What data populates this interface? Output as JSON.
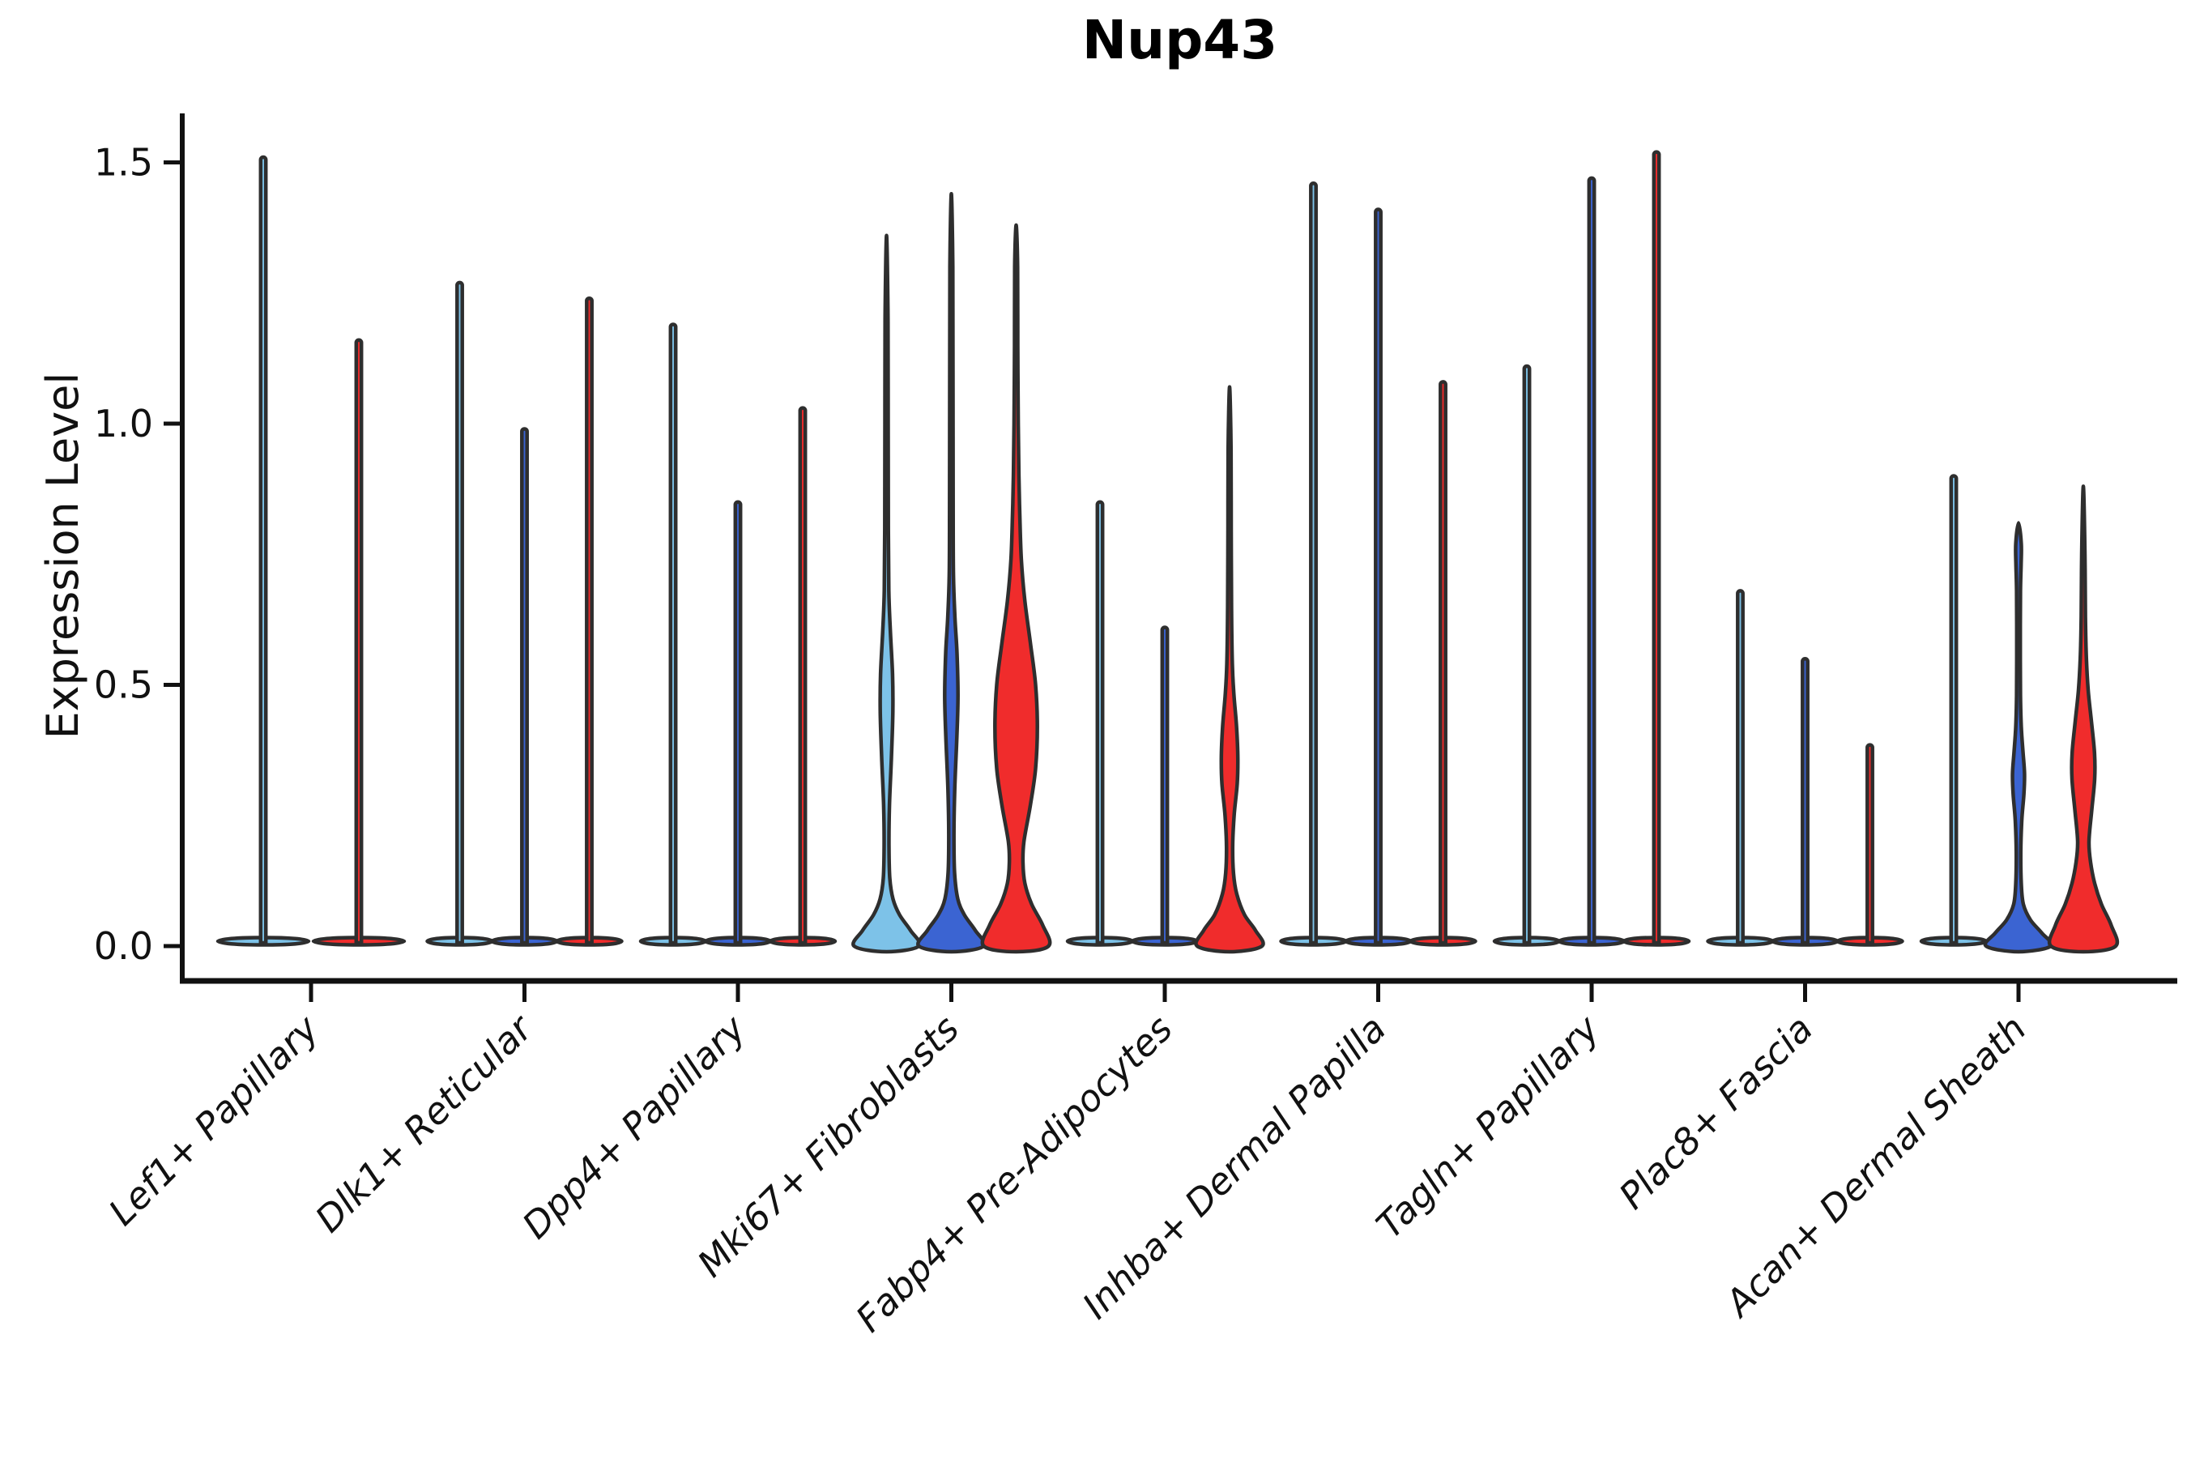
{
  "chart_data": {
    "type": "violin",
    "title": "Nup43",
    "xlabel": "",
    "ylabel": "Expression Level",
    "yticks": [
      "0.0",
      "0.5",
      "1.0",
      "1.5"
    ],
    "ytick_values": [
      0.0,
      0.5,
      1.0,
      1.5
    ],
    "ylim": [
      -0.07,
      1.59
    ],
    "grid": false,
    "legend": "none",
    "colors": {
      "skyblue": "#7DC2E8",
      "blue": "#3B64D2",
      "red": "#F02C2C",
      "outline": "#2E2E2E",
      "axis": "#111111"
    },
    "categories": [
      "Lef1+ Papillary",
      "Dlk1+ Reticular",
      "Dpp4+ Papillary",
      "Mki67+ Fibroblasts",
      "Fabp4+ Pre-Adipocytes",
      "Inhba+ Dermal Papilla",
      "Tagln+ Papillary",
      "Plac8+ Fascia",
      "Acan+ Dermal Sheath"
    ],
    "groups": [
      {
        "label": "Lef1+ Papillary",
        "violins": [
          {
            "color": "skyblue",
            "kind": "spike",
            "max": 1.51
          },
          {
            "color": "red",
            "kind": "spike",
            "max": 1.16
          }
        ]
      },
      {
        "label": "Dlk1+ Reticular",
        "violins": [
          {
            "color": "skyblue",
            "kind": "spike",
            "max": 1.27
          },
          {
            "color": "blue",
            "kind": "spike",
            "max": 0.99
          },
          {
            "color": "red",
            "kind": "spike",
            "max": 1.24
          }
        ]
      },
      {
        "label": "Dpp4+ Papillary",
        "violins": [
          {
            "color": "skyblue",
            "kind": "spike",
            "max": 1.19
          },
          {
            "color": "blue",
            "kind": "spike",
            "max": 0.85
          },
          {
            "color": "red",
            "kind": "spike",
            "max": 1.03
          }
        ]
      },
      {
        "label": "Mki67+ Fibroblasts",
        "violins": [
          {
            "color": "skyblue",
            "kind": "body",
            "max": 1.36,
            "profile": [
              [
                0,
                1.0
              ],
              [
                0.03,
                0.74
              ],
              [
                0.06,
                0.4
              ],
              [
                0.09,
                0.2
              ],
              [
                0.13,
                0.1
              ],
              [
                0.19,
                0.075
              ],
              [
                0.27,
                0.09
              ],
              [
                0.36,
                0.15
              ],
              [
                0.45,
                0.195
              ],
              [
                0.52,
                0.185
              ],
              [
                0.6,
                0.12
              ],
              [
                0.68,
                0.07
              ],
              [
                0.8,
                0.055
              ],
              [
                1.0,
                0.05
              ],
              [
                1.2,
                0.045
              ],
              [
                1.36,
                0
              ]
            ]
          },
          {
            "color": "blue",
            "kind": "body",
            "max": 1.44,
            "profile": [
              [
                0,
                1.0
              ],
              [
                0.03,
                0.74
              ],
              [
                0.06,
                0.4
              ],
              [
                0.09,
                0.2
              ],
              [
                0.14,
                0.1
              ],
              [
                0.21,
                0.08
              ],
              [
                0.3,
                0.105
              ],
              [
                0.4,
                0.17
              ],
              [
                0.48,
                0.205
              ],
              [
                0.56,
                0.175
              ],
              [
                0.63,
                0.11
              ],
              [
                0.71,
                0.065
              ],
              [
                0.85,
                0.055
              ],
              [
                1.1,
                0.05
              ],
              [
                1.3,
                0.045
              ],
              [
                1.44,
                0
              ]
            ]
          },
          {
            "color": "red",
            "kind": "body",
            "max": 1.38,
            "profile": [
              [
                0,
                1.0
              ],
              [
                0.04,
                0.82
              ],
              [
                0.08,
                0.48
              ],
              [
                0.12,
                0.27
              ],
              [
                0.16,
                0.21
              ],
              [
                0.2,
                0.24
              ],
              [
                0.27,
                0.44
              ],
              [
                0.34,
                0.6
              ],
              [
                0.42,
                0.655
              ],
              [
                0.5,
                0.6
              ],
              [
                0.58,
                0.44
              ],
              [
                0.66,
                0.27
              ],
              [
                0.74,
                0.16
              ],
              [
                0.82,
                0.115
              ],
              [
                0.9,
                0.085
              ],
              [
                1.0,
                0.065
              ],
              [
                1.15,
                0.05
              ],
              [
                1.3,
                0.045
              ],
              [
                1.38,
                0
              ]
            ]
          }
        ]
      },
      {
        "label": "Fabp4+ Pre-Adipocytes",
        "violins": [
          {
            "color": "skyblue",
            "kind": "spike",
            "max": 0.85
          },
          {
            "color": "blue",
            "kind": "spike",
            "max": 0.61
          },
          {
            "color": "red",
            "kind": "body",
            "max": 1.07,
            "profile": [
              [
                0,
                1.0
              ],
              [
                0.03,
                0.8
              ],
              [
                0.06,
                0.46
              ],
              [
                0.1,
                0.22
              ],
              [
                0.14,
                0.12
              ],
              [
                0.19,
                0.095
              ],
              [
                0.25,
                0.14
              ],
              [
                0.31,
                0.235
              ],
              [
                0.36,
                0.255
              ],
              [
                0.42,
                0.215
              ],
              [
                0.48,
                0.135
              ],
              [
                0.54,
                0.085
              ],
              [
                0.65,
                0.06
              ],
              [
                0.8,
                0.05
              ],
              [
                0.95,
                0.045
              ],
              [
                1.07,
                0
              ]
            ]
          }
        ]
      },
      {
        "label": "Inhba+ Dermal Papilla",
        "violins": [
          {
            "color": "skyblue",
            "kind": "spike",
            "max": 1.46
          },
          {
            "color": "blue",
            "kind": "spike",
            "max": 1.41
          },
          {
            "color": "red",
            "kind": "spike",
            "max": 1.08
          }
        ]
      },
      {
        "label": "Tagln+ Papillary",
        "violins": [
          {
            "color": "skyblue",
            "kind": "spike",
            "max": 1.11
          },
          {
            "color": "blue",
            "kind": "spike",
            "max": 1.47
          },
          {
            "color": "red",
            "kind": "spike",
            "max": 1.52
          }
        ]
      },
      {
        "label": "Plac8+ Fascia",
        "violins": [
          {
            "color": "skyblue",
            "kind": "spike",
            "max": 0.68
          },
          {
            "color": "blue",
            "kind": "spike",
            "max": 0.55
          },
          {
            "color": "red",
            "kind": "spike",
            "max": 0.385
          }
        ]
      },
      {
        "label": "Acan+ Dermal Sheath",
        "violins": [
          {
            "color": "skyblue",
            "kind": "spike",
            "max": 0.9
          },
          {
            "color": "blue",
            "kind": "body",
            "max": 0.81,
            "profile": [
              [
                0,
                1.0
              ],
              [
                0.025,
                0.72
              ],
              [
                0.05,
                0.37
              ],
              [
                0.08,
                0.15
              ],
              [
                0.12,
                0.085
              ],
              [
                0.18,
                0.07
              ],
              [
                0.24,
                0.1
              ],
              [
                0.29,
                0.165
              ],
              [
                0.33,
                0.185
              ],
              [
                0.37,
                0.14
              ],
              [
                0.42,
                0.085
              ],
              [
                0.48,
                0.06
              ],
              [
                0.58,
                0.055
              ],
              [
                0.68,
                0.06
              ],
              [
                0.73,
                0.08
              ],
              [
                0.77,
                0.085
              ],
              [
                0.81,
                0
              ]
            ]
          },
          {
            "color": "red",
            "kind": "body",
            "max": 0.88,
            "profile": [
              [
                0,
                1.0
              ],
              [
                0.04,
                0.86
              ],
              [
                0.08,
                0.56
              ],
              [
                0.12,
                0.35
              ],
              [
                0.16,
                0.225
              ],
              [
                0.2,
                0.175
              ],
              [
                0.26,
                0.26
              ],
              [
                0.32,
                0.35
              ],
              [
                0.37,
                0.345
              ],
              [
                0.43,
                0.25
              ],
              [
                0.49,
                0.15
              ],
              [
                0.55,
                0.095
              ],
              [
                0.63,
                0.065
              ],
              [
                0.75,
                0.05
              ],
              [
                0.88,
                0
              ]
            ]
          }
        ]
      }
    ]
  }
}
